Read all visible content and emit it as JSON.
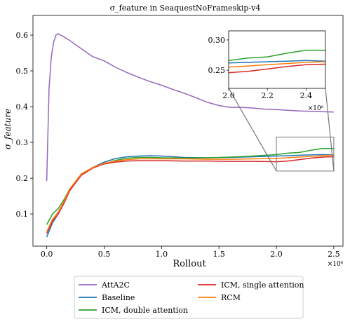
{
  "chart_data": {
    "type": "line",
    "title": "σ_feature in SeaquestNoFrameskip-v4",
    "xlabel": "Rollout",
    "ylabel": "σ_feature",
    "x_multiplier_label": "×10⁶",
    "xlim": [
      -0.12,
      2.58
    ],
    "ylim": [
      0.01,
      0.655
    ],
    "x_ticks": [
      0.0,
      0.5,
      1.0,
      1.5,
      2.0,
      2.5
    ],
    "x_tick_labels": [
      "0.0",
      "0.5",
      "1.0",
      "1.5",
      "2.0",
      "2.5"
    ],
    "y_ticks": [
      0.1,
      0.2,
      0.3,
      0.4,
      0.5,
      0.6
    ],
    "y_tick_labels": [
      "0.1",
      "0.2",
      "0.3",
      "0.4",
      "0.5",
      "0.6"
    ],
    "grid": false,
    "legend": "bottom-center, outside, 2 columns",
    "series": [
      {
        "name": "AttA2C",
        "color": "#9467bd",
        "x": [
          0.0,
          0.02,
          0.04,
          0.06,
          0.08,
          0.1,
          0.12,
          0.15,
          0.2,
          0.3,
          0.4,
          0.5,
          0.6,
          0.7,
          0.8,
          0.9,
          1.0,
          1.1,
          1.2,
          1.3,
          1.4,
          1.5,
          1.6,
          1.7,
          1.8,
          1.9,
          2.0,
          2.1,
          2.2,
          2.3,
          2.4,
          2.5
        ],
        "values": [
          0.192,
          0.45,
          0.54,
          0.58,
          0.6,
          0.604,
          0.6,
          0.595,
          0.585,
          0.562,
          0.54,
          0.528,
          0.51,
          0.495,
          0.482,
          0.47,
          0.46,
          0.448,
          0.437,
          0.425,
          0.412,
          0.403,
          0.398,
          0.398,
          0.396,
          0.393,
          0.392,
          0.39,
          0.388,
          0.387,
          0.386,
          0.385
        ]
      },
      {
        "name": "Baseline",
        "color": "#1f77b4",
        "x": [
          0.0,
          0.05,
          0.1,
          0.15,
          0.2,
          0.3,
          0.4,
          0.5,
          0.6,
          0.7,
          0.8,
          0.9,
          1.0,
          1.2,
          1.4,
          1.6,
          1.8,
          2.0,
          2.1,
          2.2,
          2.3,
          2.4,
          2.5
        ],
        "values": [
          0.035,
          0.075,
          0.1,
          0.13,
          0.165,
          0.21,
          0.23,
          0.245,
          0.255,
          0.26,
          0.262,
          0.263,
          0.262,
          0.258,
          0.257,
          0.258,
          0.26,
          0.262,
          0.263,
          0.264,
          0.265,
          0.266,
          0.265
        ]
      },
      {
        "name": "ICM, double attention",
        "color": "#2ca02c",
        "x": [
          0.0,
          0.05,
          0.1,
          0.15,
          0.2,
          0.3,
          0.4,
          0.5,
          0.6,
          0.7,
          0.8,
          0.9,
          1.0,
          1.2,
          1.4,
          1.6,
          1.8,
          2.0,
          2.1,
          2.2,
          2.3,
          2.4,
          2.5
        ],
        "values": [
          0.07,
          0.1,
          0.115,
          0.14,
          0.17,
          0.21,
          0.23,
          0.24,
          0.25,
          0.256,
          0.258,
          0.258,
          0.257,
          0.256,
          0.257,
          0.259,
          0.262,
          0.266,
          0.27,
          0.272,
          0.278,
          0.283,
          0.283
        ]
      },
      {
        "name": "ICM, single attention",
        "color": "#d62728",
        "x": [
          0.0,
          0.05,
          0.1,
          0.15,
          0.2,
          0.3,
          0.4,
          0.5,
          0.6,
          0.7,
          0.8,
          0.9,
          1.0,
          1.2,
          1.4,
          1.6,
          1.8,
          2.0,
          2.1,
          2.2,
          2.3,
          2.4,
          2.5
        ],
        "values": [
          0.045,
          0.08,
          0.1,
          0.13,
          0.165,
          0.208,
          0.228,
          0.24,
          0.245,
          0.248,
          0.249,
          0.249,
          0.249,
          0.248,
          0.248,
          0.247,
          0.247,
          0.246,
          0.248,
          0.252,
          0.256,
          0.259,
          0.26
        ]
      },
      {
        "name": "RCM",
        "color": "#ff7f0e",
        "x": [
          0.0,
          0.05,
          0.1,
          0.15,
          0.2,
          0.3,
          0.4,
          0.5,
          0.6,
          0.7,
          0.8,
          0.9,
          1.0,
          1.2,
          1.4,
          1.6,
          1.8,
          2.0,
          2.1,
          2.2,
          2.3,
          2.4,
          2.5
        ],
        "values": [
          0.05,
          0.085,
          0.105,
          0.135,
          0.17,
          0.212,
          0.23,
          0.242,
          0.248,
          0.252,
          0.254,
          0.254,
          0.254,
          0.254,
          0.253,
          0.253,
          0.254,
          0.255,
          0.257,
          0.259,
          0.261,
          0.263,
          0.264
        ]
      }
    ],
    "inset": {
      "xlim": [
        2.0,
        2.5
      ],
      "ylim": [
        0.22,
        0.315
      ],
      "x_ticks": [
        2.0,
        2.2,
        2.4
      ],
      "x_tick_labels": [
        "2.0",
        "2.2",
        "2.4"
      ],
      "y_ticks": [
        0.25,
        0.3
      ],
      "y_tick_labels": [
        "0.25",
        "0.30"
      ],
      "x_multiplier_label": "×10⁶"
    }
  }
}
